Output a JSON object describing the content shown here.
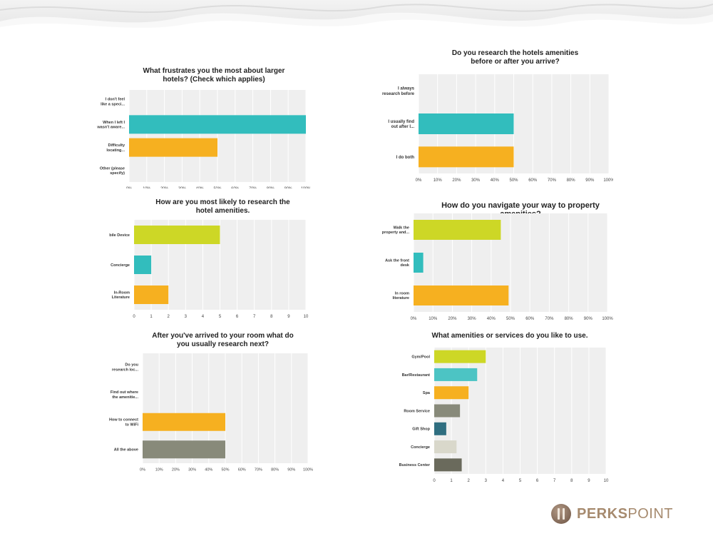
{
  "brand": {
    "part1": "PERKS",
    "part2": "POINT"
  },
  "charts": [
    {
      "type": "bar",
      "title": "What frustrates you the most about larger\nhotels? (Check which applies)",
      "categories": [
        "I don't feel\nlike a speci...",
        "When I left I\nwasn't aware...",
        "Difficulty\nlocating...",
        "Other (please\nspecify)"
      ],
      "values": [
        0,
        100,
        50,
        0
      ],
      "colors": [
        "#cdd726",
        "#32bdbd",
        "#f6b020",
        "#888a7a"
      ],
      "xlim": [
        0,
        100
      ],
      "ticks": [
        "0%",
        "10%",
        "20%",
        "30%",
        "40%",
        "50%",
        "60%",
        "70%",
        "80%",
        "90%",
        "100%"
      ]
    },
    {
      "type": "bar",
      "title": "Do you research the hotels amenities\nbefore or after you arrive?",
      "categories": [
        "I always\nresearch before",
        "I usually find\nout after I...",
        "I do both"
      ],
      "values": [
        0,
        50,
        50
      ],
      "colors": [
        "#cdd726",
        "#32bdbd",
        "#f6b020"
      ],
      "xlim": [
        0,
        100
      ],
      "ticks": [
        "0%",
        "10%",
        "20%",
        "30%",
        "40%",
        "50%",
        "60%",
        "70%",
        "80%",
        "90%",
        "100%"
      ]
    },
    {
      "type": "bar",
      "title": "How are you most likely to research the\nhotel amenities.",
      "categories": [
        "bile Device",
        "Concierge",
        "In-Room\nLiterature"
      ],
      "values": [
        5,
        1,
        2
      ],
      "colors": [
        "#cdd726",
        "#32bdbd",
        "#f6b020"
      ],
      "xlim": [
        0,
        10
      ],
      "ticks": [
        "0",
        "1",
        "2",
        "3",
        "4",
        "5",
        "6",
        "7",
        "8",
        "9",
        "10"
      ]
    },
    {
      "type": "bar",
      "title": "How do you navigate your way to property amenities?",
      "categories": [
        "Walk the\nproperty and...",
        "Ask the front\ndesk",
        "In room\nliterature"
      ],
      "values": [
        45,
        5,
        49
      ],
      "colors": [
        "#cdd726",
        "#32bdbd",
        "#f6b020"
      ],
      "xlim": [
        0,
        100
      ],
      "ticks": [
        "0%",
        "10%",
        "20%",
        "30%",
        "40%",
        "50%",
        "60%",
        "70%",
        "80%",
        "90%",
        "100%"
      ]
    },
    {
      "type": "bar",
      "title": "After you've arrived to your room what do\nyou usually research next?",
      "categories": [
        "Do you\nresearch loc...",
        "Find out where\nthe amenitie...",
        "How to connect\nto WiFi",
        "All the above"
      ],
      "values": [
        0,
        0,
        50,
        50
      ],
      "colors": [
        "#cdd726",
        "#32bdbd",
        "#f6b020",
        "#888a7a"
      ],
      "xlim": [
        0,
        100
      ],
      "ticks": [
        "0%",
        "10%",
        "20%",
        "30%",
        "40%",
        "50%",
        "60%",
        "70%",
        "80%",
        "90%",
        "100%"
      ]
    },
    {
      "type": "bar",
      "title": "What amenities or services do you like to use.",
      "categories": [
        "Gym/Pool",
        "Bar/Restaurant",
        "Spa",
        "Room Service",
        "Gift Shop",
        "Concierge",
        "Business Center"
      ],
      "values": [
        3,
        2.5,
        2,
        1.5,
        0.7,
        1.3,
        1.6
      ],
      "colors": [
        "#cdd726",
        "#4cc4c4",
        "#f6b020",
        "#888a7a",
        "#2f6e80",
        "#d9d8cb",
        "#6a6a5c"
      ],
      "xlim": [
        0,
        10
      ],
      "ticks": [
        "0",
        "1",
        "2",
        "3",
        "4",
        "5",
        "6",
        "7",
        "8",
        "9",
        "10"
      ]
    }
  ]
}
